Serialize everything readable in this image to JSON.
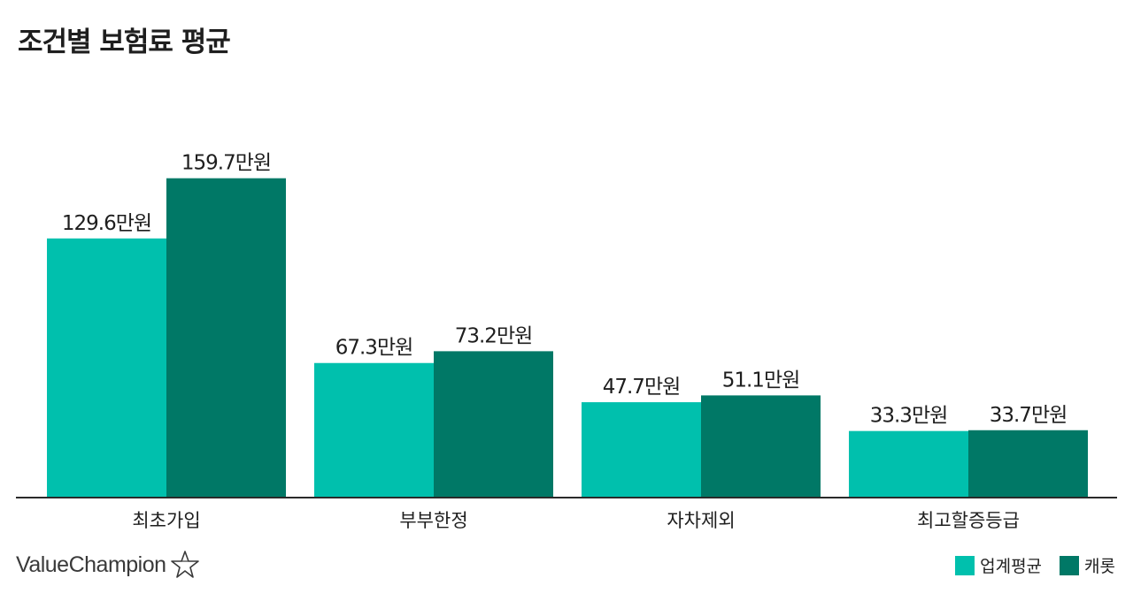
{
  "chart_data": {
    "type": "bar",
    "title": "조건별 보험료 평균",
    "categories": [
      "최초가입",
      "부부한정",
      "자차제외",
      "최고할증등급"
    ],
    "unit_suffix": "만원",
    "series": [
      {
        "name": "업계평균",
        "color": "#00c0ad",
        "values": [
          129.6,
          67.3,
          47.7,
          33.3
        ]
      },
      {
        "name": "캐롯",
        "color": "#007866",
        "values": [
          159.7,
          73.2,
          51.1,
          33.7
        ]
      }
    ],
    "ylim": [
      0,
      160
    ],
    "grid": false,
    "legend_position": "bottom-right"
  },
  "brand": {
    "logo_text": "ValueChampion",
    "logo_icon": "star-outline-icon"
  }
}
